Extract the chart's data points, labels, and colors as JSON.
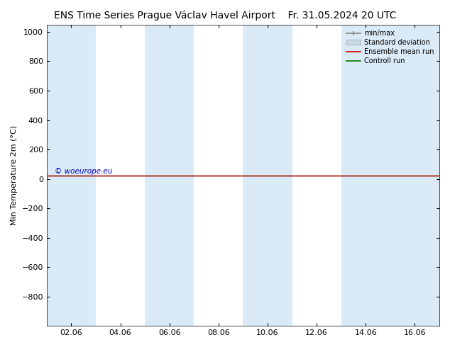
{
  "title": "ENS Time Series Prague Václav Havel Airport",
  "date_str": "Fr. 31.05.2024 20 UTC",
  "ylabel": "Min Temperature 2m (°C)",
  "ylim_top": -1000,
  "ylim_bottom": 1050,
  "yticks": [
    -800,
    -600,
    -400,
    -200,
    0,
    200,
    400,
    600,
    800,
    1000
  ],
  "xlim": [
    0,
    16
  ],
  "xtick_labels": [
    "02.06",
    "04.06",
    "06.06",
    "08.06",
    "10.06",
    "12.06",
    "14.06",
    "16.06"
  ],
  "xtick_positions": [
    1,
    3,
    5,
    7,
    9,
    11,
    13,
    15
  ],
  "shaded_bands": [
    [
      0,
      2
    ],
    [
      4,
      6
    ],
    [
      8,
      10
    ],
    [
      12,
      14
    ],
    [
      14,
      16
    ]
  ],
  "shaded_color": "#daeaf7",
  "control_run_y": 20,
  "ensemble_mean_y": 20,
  "line_color_control": "#007700",
  "line_color_ensemble": "#cc0000",
  "watermark": "© woeurope.eu",
  "watermark_color": "#0000bb",
  "bg_color": "#ffffff",
  "legend_labels": [
    "min/max",
    "Standard deviation",
    "Ensemble mean run",
    "Controll run"
  ],
  "legend_minmax_color": "#888888",
  "legend_std_color": "#c8dce8",
  "legend_std_edge": "#aaaaaa",
  "title_fontsize": 10,
  "axis_fontsize": 8,
  "tick_fontsize": 8
}
